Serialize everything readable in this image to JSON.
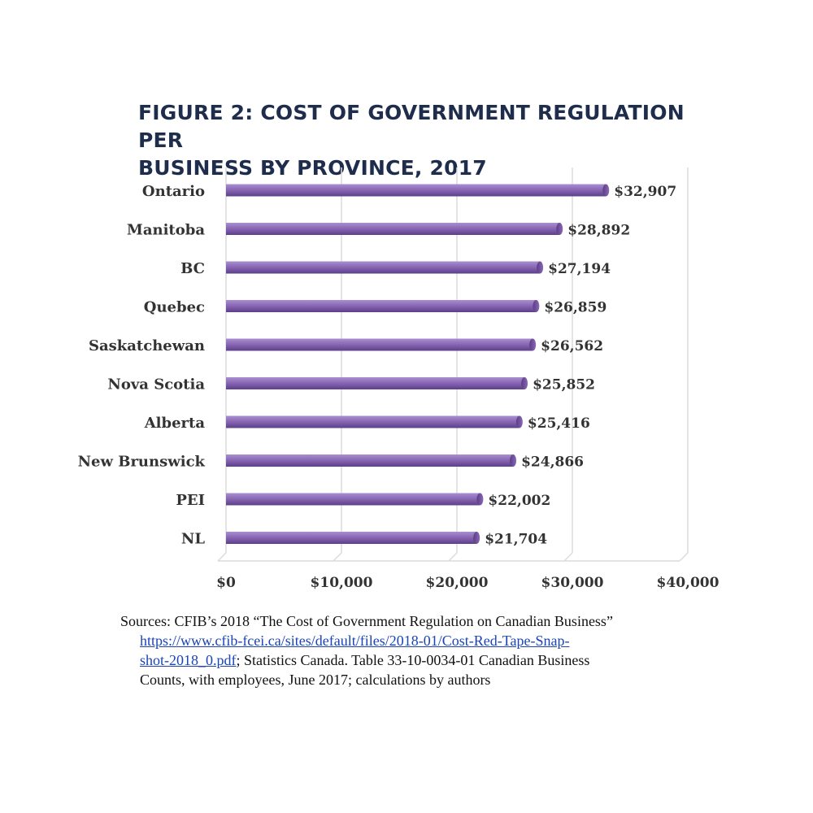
{
  "title_line1": "FIGURE 2: COST OF GOVERNMENT REGULATION PER",
  "title_line2": "BUSINESS BY PROVINCE, 2017",
  "chart_data": {
    "type": "bar",
    "orientation": "horizontal",
    "categories": [
      "Ontario",
      "Manitoba",
      "BC",
      "Quebec",
      "Saskatchewan",
      "Nova Scotia",
      "Alberta",
      "New Brunswick",
      "PEI",
      "NL"
    ],
    "values": [
      32907,
      28892,
      27194,
      26859,
      26562,
      25852,
      25416,
      24866,
      22002,
      21704
    ],
    "value_labels": [
      "$32,907",
      "$28,892",
      "$27,194",
      "$26,859",
      "$26,562",
      "$25,852",
      "$25,416",
      "$24,866",
      "$22,002",
      "$21,704"
    ],
    "xlim": [
      0,
      40000
    ],
    "x_ticks": [
      0,
      10000,
      20000,
      30000,
      40000
    ],
    "x_tick_labels": [
      "$0",
      "$10,000",
      "$20,000",
      "$30,000",
      "$40,000"
    ],
    "grid": true,
    "bar_color": "#8a68b5"
  },
  "source": {
    "line1": "Sources: CFIB’s 2018 “The Cost of Government Regulation on Canadian Business”",
    "link": "https://www.cfib-fcei.ca/sites/default/files/2018-01/Cost-Red-Tape-Snap-shot-2018_0.pdf",
    "link_text_line1": "https://www.cfib-fcei.ca/sites/default/files/2018-01/Cost-Red-Tape-Snap-",
    "link_text_line2": "shot-2018_0.pdf",
    "after_link": "; Statistics Canada. Table 33-10-0034-01 Canadian Business",
    "line4": "Counts, with employees, June 2017; calculations by authors"
  }
}
